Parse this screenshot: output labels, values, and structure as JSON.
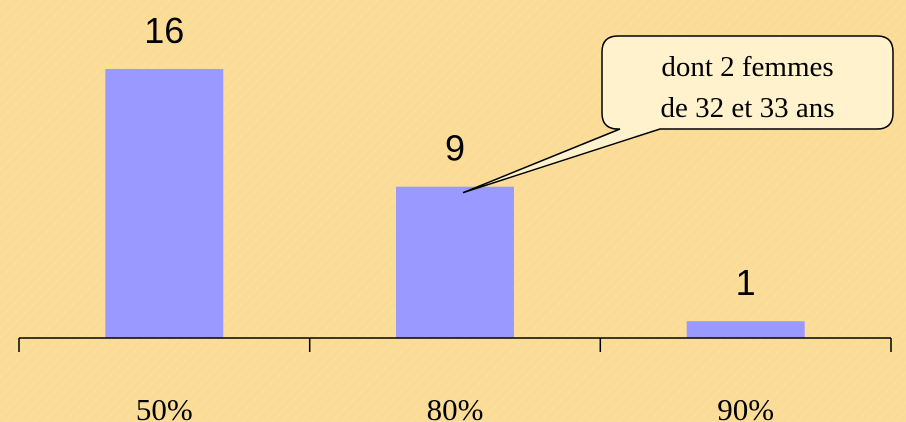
{
  "colors": {
    "background": "#fbdc97",
    "bar": "#9999ff",
    "axis": "#000000",
    "callout_fill": "#fff2cc",
    "callout_stroke": "#000000"
  },
  "chart_data": {
    "type": "bar",
    "title": "",
    "xlabel": "",
    "ylabel": "",
    "categories": [
      "50%",
      "80%",
      "90%"
    ],
    "values": [
      16,
      9,
      1
    ],
    "data_labels": [
      "16",
      "9",
      "1"
    ],
    "ylim": [
      0,
      16
    ],
    "grid": false,
    "legend": "none",
    "annotations": [
      {
        "category": "80%",
        "lines": [
          "dont 2 femmes",
          "de 32 et 33 ans"
        ]
      }
    ]
  }
}
